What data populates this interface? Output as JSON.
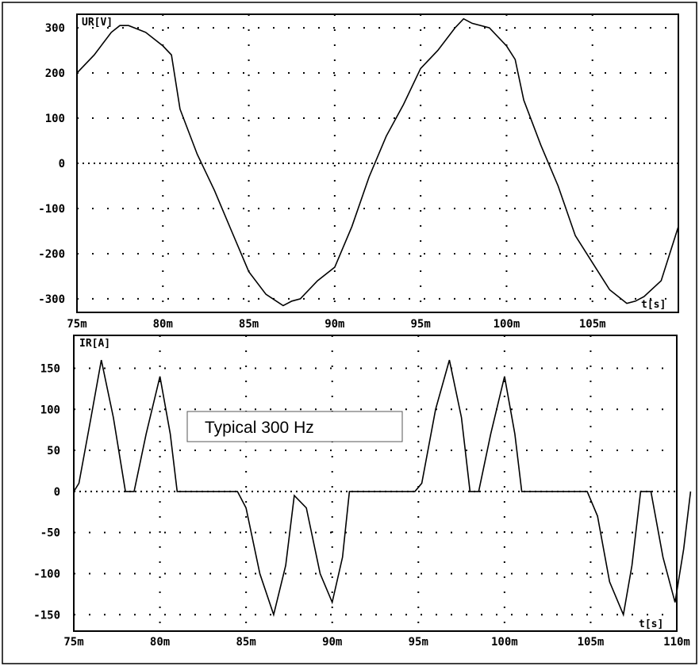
{
  "chart_data": [
    {
      "type": "line",
      "ylabel": "UR[V]",
      "xlabel": "t[s]",
      "xlim": [
        75,
        110
      ],
      "ylim": [
        -330,
        330
      ],
      "x_ticks": [
        "75m",
        "80m",
        "85m",
        "90m",
        "95m",
        "100m",
        "105m"
      ],
      "y_ticks": [
        "300",
        "200",
        "100",
        "0",
        "-100",
        "-200",
        "-300"
      ],
      "grid": true,
      "series": [
        {
          "x": [
            75,
            76,
            77,
            77.5,
            78,
            79,
            80,
            80.5,
            81,
            82,
            83,
            84,
            85,
            86,
            87,
            87.5,
            88,
            89,
            90,
            91,
            92,
            93,
            94,
            95,
            96,
            97,
            97.5,
            98,
            99,
            100,
            100.5,
            101,
            102,
            103,
            104,
            105,
            106,
            107,
            107.5,
            108,
            109,
            110
          ],
          "y": [
            200,
            240,
            290,
            305,
            305,
            290,
            260,
            240,
            120,
            20,
            -60,
            -150,
            -240,
            -290,
            -315,
            -305,
            -300,
            -260,
            -230,
            -140,
            -30,
            60,
            130,
            210,
            250,
            300,
            320,
            310,
            300,
            260,
            230,
            140,
            40,
            -50,
            -160,
            -220,
            -280,
            -310,
            -305,
            -295,
            -260,
            -140
          ]
        }
      ]
    },
    {
      "type": "line",
      "ylabel": "IR[A]",
      "xlabel": "t[s]",
      "xlim": [
        75,
        110
      ],
      "ylim": [
        -170,
        190
      ],
      "x_ticks": [
        "75m",
        "80m",
        "85m",
        "90m",
        "95m",
        "100m",
        "105m",
        "110m"
      ],
      "y_ticks": [
        "150",
        "100",
        "50",
        "0",
        "-50",
        "-100",
        "-150"
      ],
      "grid": true,
      "series": [
        {
          "x": [
            75,
            75.3,
            76,
            76.6,
            77.3,
            78,
            78.5,
            79.2,
            80,
            80.6,
            81,
            84.5,
            85,
            85.8,
            86.6,
            87.3,
            87.8,
            88.5,
            89.3,
            90,
            90.6,
            91,
            94.8,
            95.2,
            96,
            96.8,
            97.5,
            98,
            98.5,
            99.2,
            100,
            100.6,
            101,
            104.8,
            105.4,
            106.1,
            106.9,
            107.4,
            107.9,
            108.5,
            109.2,
            109.9,
            110.4,
            110.8
          ],
          "y": [
            0,
            10,
            90,
            160,
            90,
            0,
            0,
            70,
            140,
            70,
            0,
            0,
            -20,
            -100,
            -150,
            -90,
            -5,
            -20,
            -100,
            -135,
            -80,
            0,
            0,
            10,
            100,
            160,
            90,
            0,
            0,
            70,
            140,
            70,
            0,
            0,
            -30,
            -110,
            -150,
            -90,
            0,
            0,
            -80,
            -135,
            -70,
            0
          ]
        }
      ]
    }
  ],
  "annotation": {
    "text": "Typical 300 Hz"
  }
}
